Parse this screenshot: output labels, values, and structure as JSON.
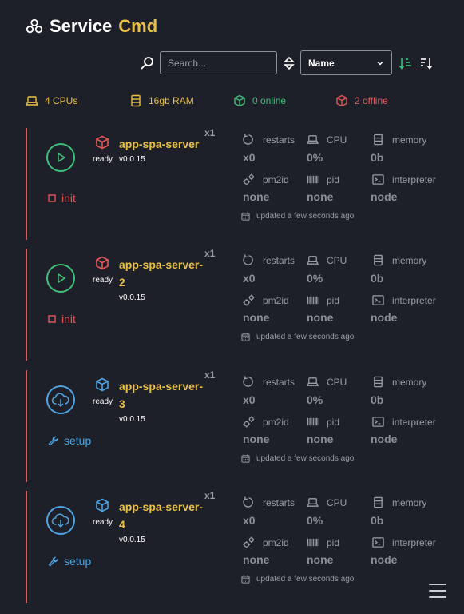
{
  "header": {
    "title_main": "Service",
    "title_accent": "Cmd",
    "logo_icon": "boxes-icon"
  },
  "controls": {
    "search_placeholder": "Search...",
    "sort_field": "Name"
  },
  "stats": {
    "cpus": "4 CPUs",
    "ram": "16gb RAM",
    "online": "0 online",
    "offline": "2 offline"
  },
  "labels": {
    "restarts": "restarts",
    "cpu": "CPU",
    "memory": "memory",
    "pm2id": "pm2id",
    "pid": "pid",
    "interpreter": "interpreter"
  },
  "services": [
    {
      "name_line1": "app-spa-server",
      "name_line2": "",
      "state": "ready",
      "version": "v0.0.15",
      "instances": "x1",
      "action": "init",
      "status_icon": "play-icon",
      "pkg_color": "#e2575a",
      "restarts": "x0",
      "cpu": "0%",
      "memory": "0b",
      "pm2id": "none",
      "pid": "none",
      "interpreter": "node",
      "updated": "updated a few seconds ago"
    },
    {
      "name_line1": "app-spa-server-",
      "name_line2": "2",
      "state": "ready",
      "version": "v0.0.15",
      "instances": "x1",
      "action": "init",
      "status_icon": "play-icon",
      "pkg_color": "#e2575a",
      "restarts": "x0",
      "cpu": "0%",
      "memory": "0b",
      "pm2id": "none",
      "pid": "none",
      "interpreter": "node",
      "updated": "updated a few seconds ago"
    },
    {
      "name_line1": "app-spa-server-",
      "name_line2": "3",
      "state": "ready",
      "version": "v0.0.15",
      "instances": "x1",
      "action": "setup",
      "status_icon": "cloud-download-icon",
      "pkg_color": "#4ea3e0",
      "restarts": "x0",
      "cpu": "0%",
      "memory": "0b",
      "pm2id": "none",
      "pid": "none",
      "interpreter": "node",
      "updated": "updated a few seconds ago"
    },
    {
      "name_line1": "app-spa-server-",
      "name_line2": "4",
      "state": "ready",
      "version": "v0.0.15",
      "instances": "x1",
      "action": "setup",
      "status_icon": "cloud-download-icon",
      "pkg_color": "#4ea3e0",
      "restarts": "x0",
      "cpu": "0%",
      "memory": "0b",
      "pm2id": "none",
      "pid": "none",
      "interpreter": "node",
      "updated": "updated a few seconds ago"
    }
  ],
  "colors": {
    "accent": "#e9c046",
    "online": "#3fbf7a",
    "offline": "#e2575a",
    "setup": "#4ea3e0"
  }
}
